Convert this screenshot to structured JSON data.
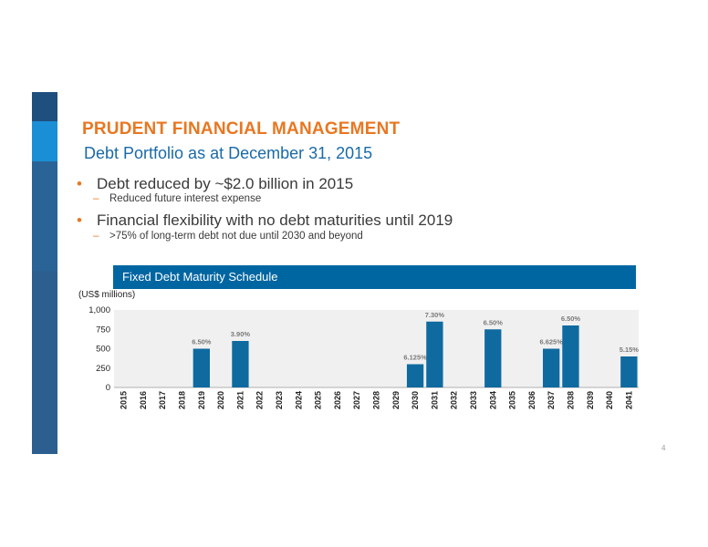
{
  "colors": {
    "accent_orange": "#e87722",
    "brand_blue": "#0066a1",
    "subtitle_blue": "#1a6aa8",
    "bar_blue": "#0f6aa0",
    "plot_bg": "#f0f0f0"
  },
  "slide": {
    "title": "PRUDENT FINANCIAL MANAGEMENT",
    "subtitle": "Debt Portfolio as at December 31, 2015",
    "bullets": [
      {
        "text": "Debt reduced by ~$2.0 billion in 2015",
        "sub": "Reduced future interest expense"
      },
      {
        "text": "Financial flexibility with no debt maturities until 2019",
        "sub": ">75% of long-term debt not due until 2030 and beyond"
      }
    ],
    "bullet_marker": "•",
    "sub_marker": "–",
    "banner": "Fixed Debt Maturity Schedule",
    "units_label": "(US$ millions)",
    "page_number": "4"
  },
  "chart_data": {
    "type": "bar",
    "title": "Fixed Debt Maturity Schedule",
    "ylabel": "(US$ millions)",
    "categories": [
      "2015",
      "2016",
      "2017",
      "2018",
      "2019",
      "2020",
      "2021",
      "2022",
      "2023",
      "2024",
      "2025",
      "2026",
      "2027",
      "2028",
      "2029",
      "2030",
      "2031",
      "2032",
      "2033",
      "2034",
      "2035",
      "2036",
      "2037",
      "2038",
      "2039",
      "2040",
      "2041"
    ],
    "values": [
      0,
      0,
      0,
      0,
      500,
      0,
      600,
      0,
      0,
      0,
      0,
      0,
      0,
      0,
      0,
      300,
      850,
      0,
      0,
      750,
      0,
      0,
      500,
      800,
      0,
      0,
      400
    ],
    "labels": [
      "",
      "",
      "",
      "",
      "6.50%",
      "",
      "3.90%",
      "",
      "",
      "",
      "",
      "",
      "",
      "",
      "",
      "6.125%",
      "7.30%",
      "",
      "",
      "6.50%",
      "",
      "",
      "6.625%",
      "6.50%",
      "",
      "",
      "5.15%"
    ],
    "ylim": [
      0,
      1000
    ],
    "yticks": [
      0,
      250,
      500,
      750,
      1000
    ],
    "ytick_labels": [
      "0",
      "250",
      "500",
      "750",
      "1,000"
    ],
    "grid": false
  }
}
